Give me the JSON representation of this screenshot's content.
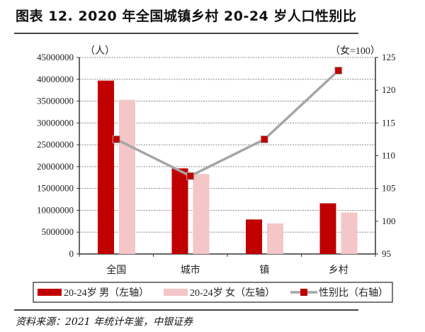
{
  "title": "图表 12. 2020 年全国城镇乡村 20-24 岁人口性别比",
  "source": "资料来源：2021 年统计年鉴，中银证券",
  "colors": {
    "male": "#C00000",
    "female": "#F4C6C8",
    "ratio_line": "#A6A6A6",
    "ratio_marker": "#C00000"
  },
  "chart_data": {
    "type": "bar",
    "categories": [
      "全国",
      "城市",
      "镇",
      "乡村"
    ],
    "left_axis": {
      "unit_label": "（人）",
      "ylim": [
        0,
        45000000
      ],
      "ticks": [
        "0",
        "5000000",
        "10000000",
        "15000000",
        "20000000",
        "25000000",
        "30000000",
        "35000000",
        "40000000",
        "45000000"
      ]
    },
    "right_axis": {
      "unit_label": "（女=100）",
      "ylim": [
        95,
        125
      ],
      "ticks": [
        "95",
        "100",
        "105",
        "110",
        "115",
        "120",
        "125"
      ]
    },
    "grid": true,
    "legend_position": "bottom",
    "series": [
      {
        "name": "20-24岁 男（左轴）",
        "type": "bar",
        "axis": "left",
        "values": [
          39700000,
          19600000,
          7900000,
          11600000
        ]
      },
      {
        "name": "20-24岁 女（左轴）",
        "type": "bar",
        "axis": "left",
        "values": [
          35300000,
          18300000,
          7000000,
          9500000
        ]
      },
      {
        "name": "性别比（右轴）",
        "type": "line",
        "axis": "right",
        "values": [
          112.5,
          106.9,
          112.5,
          123.0
        ]
      }
    ]
  }
}
